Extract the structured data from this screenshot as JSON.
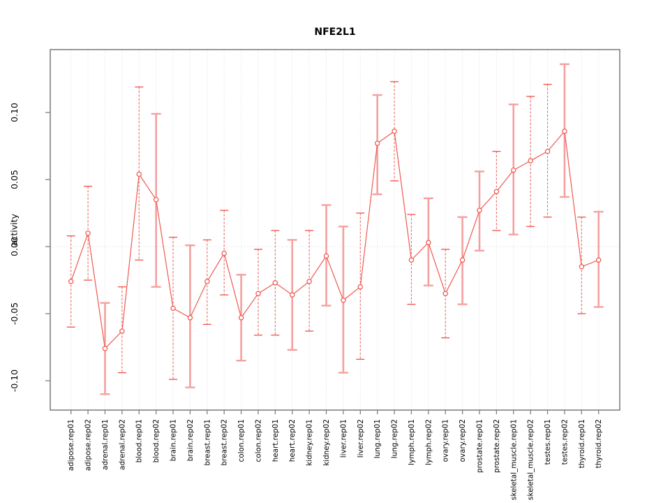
{
  "title": "NFE2L1",
  "chart_data": {
    "type": "line",
    "title": "NFE2L1",
    "xlabel": "",
    "ylabel": "activity",
    "legend": "none",
    "grid": "vertical-dotted-per-category-plus-dotted-zero-line",
    "yticks": [
      0.1,
      0.05,
      0.0,
      -0.05,
      -0.1
    ],
    "ytick_labels": [
      "0.10",
      "0.05",
      "0.00",
      "-0.05",
      "-0.10"
    ],
    "ylim": [
      -0.122,
      0.147
    ],
    "categories": [
      "adipose.rep01",
      "adipose.rep02",
      "adrenal.rep01",
      "adrenal.rep02",
      "blood.rep01",
      "blood.rep02",
      "brain.rep01",
      "brain.rep02",
      "breast.rep01",
      "breast.rep02",
      "colon.rep01",
      "colon.rep02",
      "heart.rep01",
      "heart.rep02",
      "kidney.rep01",
      "kidney.rep02",
      "liver.rep01",
      "liver.rep02",
      "lung.rep01",
      "lung.rep02",
      "lymph.rep01",
      "lymph.rep02",
      "ovary.rep01",
      "ovary.rep02",
      "prostate.rep01",
      "prostate.rep02",
      "skeletal_muscle.rep01",
      "skeletal_muscle.rep02",
      "testes.rep01",
      "testes.rep02",
      "thyroid.rep01",
      "thyroid.rep02"
    ],
    "series": [
      {
        "name": "activity",
        "values": [
          -0.026,
          0.01,
          -0.076,
          -0.063,
          0.054,
          0.035,
          -0.046,
          -0.053,
          -0.026,
          -0.005,
          -0.053,
          -0.035,
          -0.027,
          -0.036,
          -0.026,
          -0.007,
          -0.04,
          -0.03,
          0.077,
          0.086,
          -0.01,
          0.003,
          -0.035,
          -0.01,
          0.027,
          0.041,
          0.057,
          0.064,
          0.071,
          0.086,
          -0.015,
          -0.01
        ],
        "error_high": [
          0.008,
          0.045,
          -0.042,
          -0.03,
          0.119,
          0.099,
          0.007,
          0.001,
          0.005,
          0.027,
          -0.021,
          -0.002,
          0.012,
          0.005,
          0.012,
          0.031,
          0.015,
          0.025,
          0.113,
          0.123,
          0.024,
          0.036,
          -0.002,
          0.022,
          0.056,
          0.071,
          0.106,
          0.112,
          0.121,
          0.136,
          0.022,
          0.026
        ],
        "error_low": [
          -0.06,
          -0.025,
          -0.11,
          -0.094,
          -0.01,
          -0.03,
          -0.099,
          -0.105,
          -0.058,
          -0.036,
          -0.085,
          -0.066,
          -0.066,
          -0.077,
          -0.063,
          -0.044,
          -0.094,
          -0.084,
          0.039,
          0.049,
          -0.043,
          -0.029,
          -0.068,
          -0.043,
          -0.003,
          0.012,
          0.009,
          0.015,
          0.022,
          0.037,
          -0.05,
          -0.045
        ]
      }
    ],
    "error_bar_styles": [
      "dashed",
      "dashed",
      "solid",
      "dashed",
      "dashed",
      "solid",
      "dashed",
      "solid",
      "dashed",
      "dashed",
      "solid",
      "dashed",
      "dashed",
      "solid",
      "dashed",
      "solid",
      "solid",
      "dashed",
      "solid",
      "dashed",
      "dashed",
      "solid",
      "dashed",
      "solid",
      "solid",
      "dashed",
      "solid",
      "dashed",
      "dashed",
      "solid",
      "dashed",
      "solid"
    ],
    "colors": {
      "accent": "#ef5048",
      "error_solid": "#f5a09e",
      "point_fill": "#ffffff",
      "grid": "#d8d8d8",
      "frame": "#808080",
      "text": "#000000"
    }
  }
}
